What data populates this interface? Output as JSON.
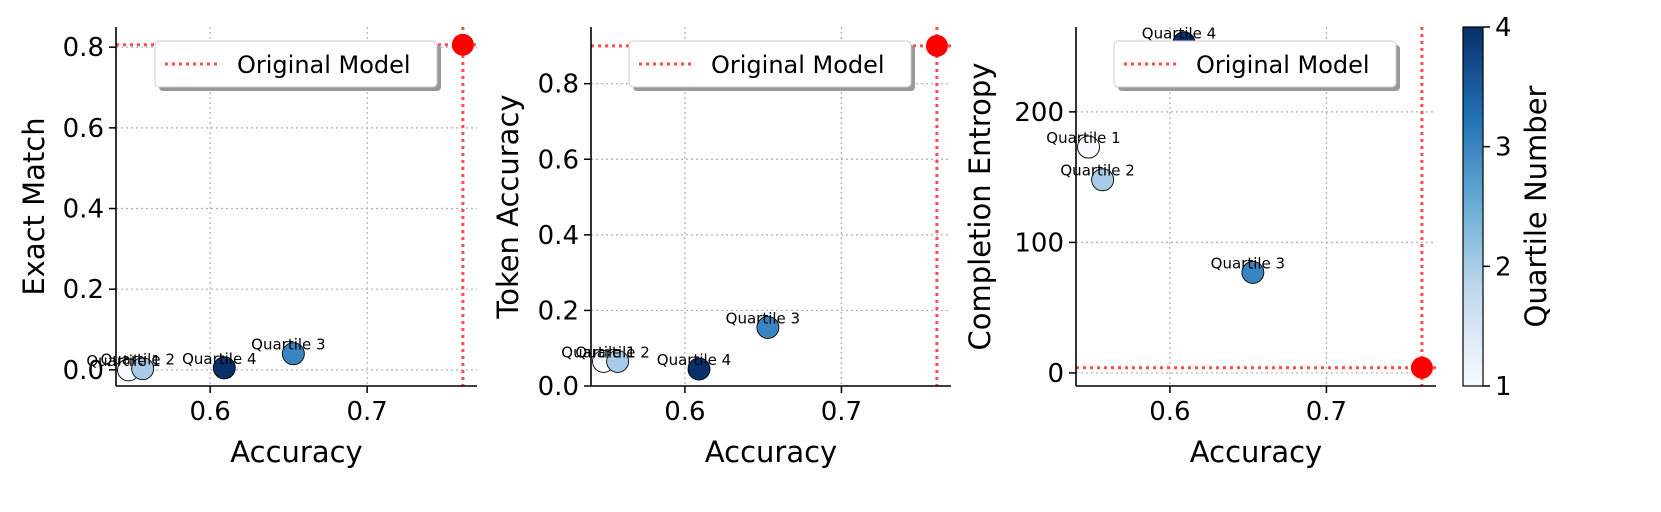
{
  "chart_data": [
    {
      "type": "scatter",
      "xlabel": "Accuracy",
      "ylabel": "Exact Match",
      "xlim": [
        0.54,
        0.77
      ],
      "ylim": [
        -0.04,
        0.85
      ],
      "xticks": [
        0.6,
        0.7
      ],
      "yticks": [
        0.0,
        0.2,
        0.4,
        0.6,
        0.8
      ],
      "grid": true,
      "legend": {
        "entries": [
          "Original Model"
        ],
        "placement": "top-right"
      },
      "points": [
        {
          "label": "Quartile 1",
          "x": 0.548,
          "y": 0.0,
          "quartile": 1
        },
        {
          "label": "Quartile 2",
          "x": 0.557,
          "y": 0.003,
          "quartile": 2
        },
        {
          "label": "Quartile 3",
          "x": 0.653,
          "y": 0.04,
          "quartile": 3
        },
        {
          "label": "Quartile 4",
          "x": 0.609,
          "y": 0.005,
          "quartile": 4
        }
      ],
      "original_model": {
        "label": "Original Model",
        "x": 0.761,
        "y": 0.806
      }
    },
    {
      "type": "scatter",
      "xlabel": "Accuracy",
      "ylabel": "Token Accuracy",
      "xlim": [
        0.54,
        0.77
      ],
      "ylim": [
        0.0,
        0.95
      ],
      "xticks": [
        0.6,
        0.7
      ],
      "yticks": [
        0.0,
        0.2,
        0.4,
        0.6,
        0.8
      ],
      "grid": true,
      "legend": {
        "entries": [
          "Original Model"
        ],
        "placement": "top-right"
      },
      "points": [
        {
          "label": "Quartile 1",
          "x": 0.548,
          "y": 0.065,
          "quartile": 1
        },
        {
          "label": "Quartile 2",
          "x": 0.557,
          "y": 0.065,
          "quartile": 2
        },
        {
          "label": "Quartile 3",
          "x": 0.653,
          "y": 0.155,
          "quartile": 3
        },
        {
          "label": "Quartile 4",
          "x": 0.609,
          "y": 0.045,
          "quartile": 4
        }
      ],
      "original_model": {
        "label": "Original Model",
        "x": 0.761,
        "y": 0.9
      }
    },
    {
      "type": "scatter",
      "xlabel": "Accuracy",
      "ylabel": "Completion Entropy",
      "xlim": [
        0.54,
        0.77
      ],
      "ylim": [
        -10,
        265
      ],
      "xticks": [
        0.6,
        0.7
      ],
      "yticks": [
        0,
        100,
        200
      ],
      "grid": true,
      "legend": {
        "entries": [
          "Original Model"
        ],
        "placement": "top-right"
      },
      "points": [
        {
          "label": "Quartile 1",
          "x": 0.548,
          "y": 173,
          "quartile": 1
        },
        {
          "label": "Quartile 2",
          "x": 0.557,
          "y": 148,
          "quartile": 2
        },
        {
          "label": "Quartile 3",
          "x": 0.653,
          "y": 77,
          "quartile": 3
        },
        {
          "label": "Quartile 4",
          "x": 0.609,
          "y": 253,
          "quartile": 4
        }
      ],
      "original_model": {
        "label": "Original Model",
        "x": 0.761,
        "y": 4
      }
    }
  ],
  "colorbar": {
    "label": "Quartile Number",
    "range": [
      1,
      4
    ],
    "ticks": [
      1,
      2,
      3,
      4
    ],
    "colormap": [
      "#f7fbff",
      "#c6dbef",
      "#6baed6",
      "#2171b5",
      "#08306b"
    ]
  },
  "colors": {
    "original_model": "#ff0000",
    "reference_line": "#ff4d4d",
    "grid": "#b0b0b0",
    "marker_edge": "#000000"
  }
}
